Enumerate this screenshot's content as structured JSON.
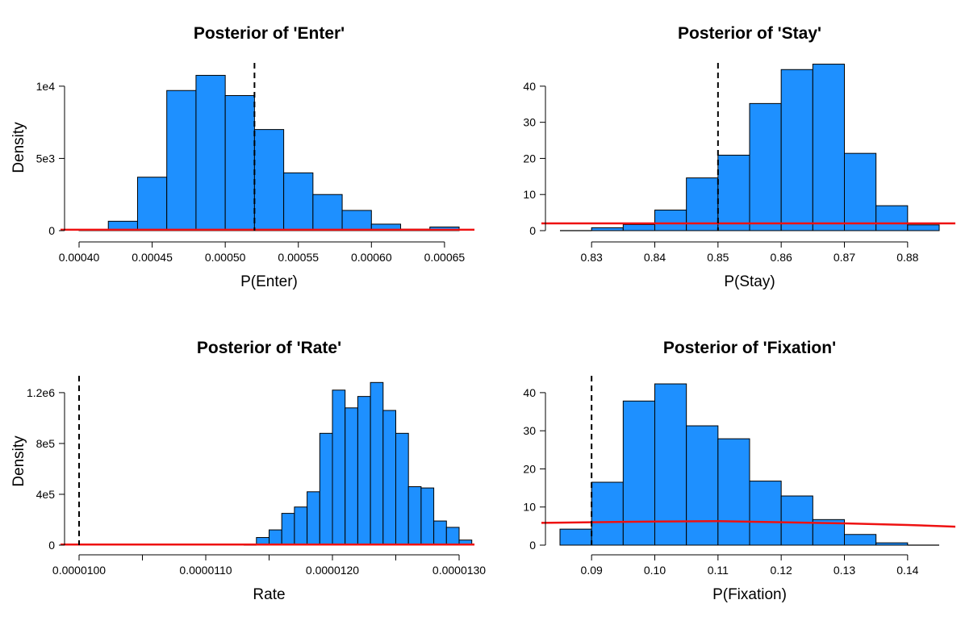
{
  "chart_data": [
    {
      "type": "bar",
      "title": "Posterior of 'Enter'",
      "xlabel": "P(Enter)",
      "ylabel": "Density",
      "xlim": [
        0.0004,
        0.00066
      ],
      "ylim": [
        0,
        11500
      ],
      "xticks": [
        0.0004,
        0.00045,
        0.0005,
        0.00055,
        0.0006,
        0.00065
      ],
      "xtick_labels": [
        "0.00040",
        "0.00045",
        "0.00050",
        "0.00055",
        "0.00060",
        "0.00065"
      ],
      "yticks": [
        0,
        5000,
        10000
      ],
      "ytick_labels": [
        "0",
        "5e3",
        "1e4"
      ],
      "bin_edges": [
        0.0004,
        0.00042,
        0.00044,
        0.00046,
        0.00048,
        0.0005,
        0.00052,
        0.00054,
        0.00056,
        0.00058,
        0.0006,
        0.00062,
        0.00064,
        0.00066
      ],
      "values": [
        25,
        650,
        3700,
        9700,
        10750,
        9350,
        7000,
        4000,
        2500,
        1400,
        450,
        100,
        250
      ],
      "vline": 0.00052,
      "prior_density": [
        [
          0.0004,
          60
        ],
        [
          0.00066,
          60
        ]
      ],
      "bar_color": "#1E90FF",
      "line_color": "#EE1111"
    },
    {
      "type": "bar",
      "title": "Posterior of 'Stay'",
      "xlabel": "P(Stay)",
      "ylabel": "",
      "xlim": [
        0.825,
        0.885
      ],
      "ylim": [
        0,
        46
      ],
      "xticks": [
        0.83,
        0.84,
        0.85,
        0.86,
        0.87,
        0.88
      ],
      "xtick_labels": [
        "0.83",
        "0.84",
        "0.85",
        "0.86",
        "0.87",
        "0.88"
      ],
      "yticks": [
        0,
        10,
        20,
        30,
        40
      ],
      "ytick_labels": [
        "0",
        "10",
        "20",
        "30",
        "40"
      ],
      "bin_edges": [
        0.825,
        0.83,
        0.835,
        0.84,
        0.845,
        0.85,
        0.855,
        0.86,
        0.865,
        0.87,
        0.875,
        0.88,
        0.885
      ],
      "values": [
        0,
        0.8,
        1.7,
        5.7,
        14.6,
        20.9,
        35.2,
        44.6,
        46.1,
        21.4,
        6.9,
        1.6
      ],
      "vline": 0.85,
      "prior_density": [
        [
          0.825,
          2.0
        ],
        [
          0.885,
          2.0
        ]
      ],
      "bar_color": "#1E90FF",
      "line_color": "#EE1111"
    },
    {
      "type": "bar",
      "title": "Posterior of 'Rate'",
      "xlabel": "Rate",
      "ylabel": "Density",
      "xlim": [
        1e-05,
        1.3e-05
      ],
      "ylim": [
        0,
        1320000
      ],
      "xticks": [
        1e-05,
        1.05e-05,
        1.1e-05,
        1.15e-05,
        1.2e-05,
        1.25e-05,
        1.3e-05
      ],
      "xtick_labels": [
        "0.0000100",
        "",
        "0.0000110",
        "",
        "0.0000120",
        "",
        "0.0000130"
      ],
      "yticks": [
        0,
        400000,
        800000,
        1200000
      ],
      "ytick_labels": [
        "0",
        "4e5",
        "8e5",
        "1.2e6"
      ],
      "bin_edges": [
        1.125e-05,
        1.13e-05,
        1.14e-05,
        1.15e-05,
        1.16e-05,
        1.17e-05,
        1.18e-05,
        1.19e-05,
        1.2e-05,
        1.21e-05,
        1.22e-05,
        1.23e-05,
        1.24e-05,
        1.25e-05,
        1.26e-05,
        1.27e-05,
        1.28e-05,
        1.29e-05,
        1.3e-05,
        1.31e-05
      ],
      "values": [
        5000,
        0,
        60000,
        120000,
        250000,
        300000,
        420000,
        880000,
        1220000,
        1080000,
        1170000,
        1280000,
        1060000,
        880000,
        460000,
        450000,
        190000,
        140000,
        40000
      ],
      "vline": 1e-05,
      "prior_density": [
        [
          1e-05,
          5000
        ],
        [
          1.3e-05,
          5000
        ]
      ],
      "bar_color": "#1E90FF",
      "line_color": "#EE1111"
    },
    {
      "type": "bar",
      "title": "Posterior of 'Fixation'",
      "xlabel": "P(Fixation)",
      "ylabel": "",
      "xlim": [
        0.085,
        0.145
      ],
      "ylim": [
        0,
        44
      ],
      "xticks": [
        0.09,
        0.1,
        0.11,
        0.12,
        0.13,
        0.14
      ],
      "xtick_labels": [
        "0.09",
        "0.10",
        "0.11",
        "0.12",
        "0.13",
        "0.14"
      ],
      "yticks": [
        0,
        10,
        20,
        30,
        40
      ],
      "ytick_labels": [
        "0",
        "10",
        "20",
        "30",
        "40"
      ],
      "bin_edges": [
        0.085,
        0.09,
        0.095,
        0.1,
        0.105,
        0.11,
        0.115,
        0.12,
        0.125,
        0.13,
        0.135,
        0.14,
        0.145
      ],
      "values": [
        4.2,
        16.5,
        37.8,
        42.3,
        31.3,
        27.9,
        16.8,
        12.9,
        6.7,
        2.8,
        0.6,
        0
      ],
      "vline": 0.09,
      "prior_density": [
        [
          0.085,
          5.9
        ],
        [
          0.1,
          6.2
        ],
        [
          0.11,
          6.3
        ],
        [
          0.12,
          6.0
        ],
        [
          0.13,
          5.7
        ],
        [
          0.14,
          5.3
        ],
        [
          0.145,
          5.0
        ]
      ],
      "bar_color": "#1E90FF",
      "line_color": "#EE1111"
    }
  ]
}
